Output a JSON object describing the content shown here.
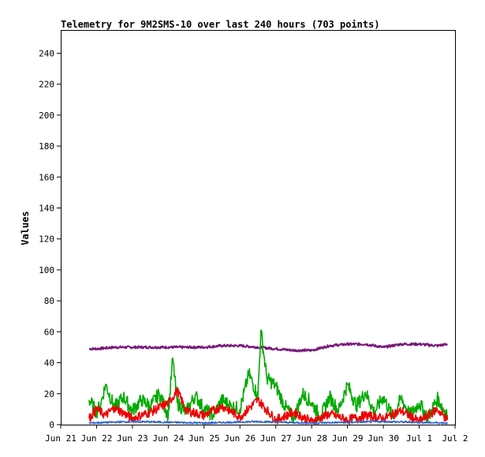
{
  "chart_data": {
    "type": "line",
    "title": "Telemetry for 9M2SMS-10 over last 240 hours (703 points)",
    "ylabel": "Values",
    "xlabel": "",
    "ylim": [
      0,
      255
    ],
    "yticks": [
      0,
      20,
      40,
      60,
      80,
      100,
      120,
      140,
      160,
      180,
      200,
      220,
      240
    ],
    "xlim": [
      "2024-06-21",
      "2024-07-02"
    ],
    "xticks": [
      {
        "date": "2024-06-21",
        "label": "Jun 21"
      },
      {
        "date": "2024-06-22",
        "label": "Jun 22"
      },
      {
        "date": "2024-06-23",
        "label": "Jun 23"
      },
      {
        "date": "2024-06-24",
        "label": "Jun 24"
      },
      {
        "date": "2024-06-25",
        "label": "Jun 25"
      },
      {
        "date": "2024-06-26",
        "label": "Jun 26"
      },
      {
        "date": "2024-06-27",
        "label": "Jun 27"
      },
      {
        "date": "2024-06-28",
        "label": "Jun 28"
      },
      {
        "date": "2024-06-29",
        "label": "Jun 29"
      },
      {
        "date": "2024-06-30",
        "label": "Jun 30"
      },
      {
        "date": "2024-07-01",
        "label": "Jul 1"
      },
      {
        "date": "2024-07-02",
        "label": "Jul 2"
      }
    ],
    "grid": false,
    "legend": "none",
    "series": [
      {
        "color": "#7a1a7a",
        "x": [
          "2024-06-21 19:00",
          "2024-06-22 00:00",
          "2024-06-22 12:00",
          "2024-06-23 00:00",
          "2024-06-23 12:00",
          "2024-06-24 00:00",
          "2024-06-24 12:00",
          "2024-06-25 00:00",
          "2024-06-25 12:00",
          "2024-06-26 00:00",
          "2024-06-26 12:00",
          "2024-06-27 00:00",
          "2024-06-27 12:00",
          "2024-06-28 00:00",
          "2024-06-28 12:00",
          "2024-06-29 00:00",
          "2024-06-29 12:00",
          "2024-06-30 00:00",
          "2024-06-30 12:00",
          "2024-07-01 00:00",
          "2024-07-01 12:00",
          "2024-07-01 19:00"
        ],
        "values": [
          49,
          49,
          50,
          50,
          50,
          50,
          50,
          50,
          51,
          51,
          50,
          49,
          48,
          48,
          51,
          52,
          52,
          50,
          52,
          52,
          51,
          52
        ]
      },
      {
        "color": "#00aa00",
        "x": [
          "2024-06-21 19:00",
          "2024-06-22 00:00",
          "2024-06-22 03:00",
          "2024-06-22 06:00",
          "2024-06-22 12:00",
          "2024-06-22 18:00",
          "2024-06-23 00:00",
          "2024-06-23 06:00",
          "2024-06-23 12:00",
          "2024-06-23 18:00",
          "2024-06-24 00:00",
          "2024-06-24 03:00",
          "2024-06-24 06:00",
          "2024-06-24 12:00",
          "2024-06-24 18:00",
          "2024-06-25 00:00",
          "2024-06-25 06:00",
          "2024-06-25 12:00",
          "2024-06-25 18:00",
          "2024-06-26 00:00",
          "2024-06-26 06:00",
          "2024-06-26 12:00",
          "2024-06-26 14:00",
          "2024-06-26 18:00",
          "2024-06-27 00:00",
          "2024-06-27 06:00",
          "2024-06-27 12:00",
          "2024-06-27 18:00",
          "2024-06-28 00:00",
          "2024-06-28 06:00",
          "2024-06-28 12:00",
          "2024-06-28 18:00",
          "2024-06-29 00:00",
          "2024-06-29 06:00",
          "2024-06-29 12:00",
          "2024-06-29 18:00",
          "2024-06-30 00:00",
          "2024-06-30 06:00",
          "2024-06-30 12:00",
          "2024-06-30 18:00",
          "2024-07-01 00:00",
          "2024-07-01 06:00",
          "2024-07-01 12:00",
          "2024-07-01 19:00"
        ],
        "values": [
          16,
          8,
          14,
          26,
          11,
          18,
          9,
          16,
          12,
          20,
          6,
          43,
          14,
          8,
          19,
          10,
          6,
          16,
          12,
          10,
          33,
          18,
          61,
          30,
          25,
          12,
          4,
          20,
          14,
          5,
          18,
          9,
          26,
          12,
          21,
          8,
          18,
          5,
          17,
          6,
          14,
          4,
          17,
          6
        ]
      },
      {
        "color": "#ee0000",
        "x": [
          "2024-06-21 19:00",
          "2024-06-22 00:00",
          "2024-06-22 06:00",
          "2024-06-22 12:00",
          "2024-06-23 00:00",
          "2024-06-23 12:00",
          "2024-06-24 00:00",
          "2024-06-24 06:00",
          "2024-06-24 12:00",
          "2024-06-25 00:00",
          "2024-06-25 12:00",
          "2024-06-26 00:00",
          "2024-06-26 12:00",
          "2024-06-27 00:00",
          "2024-06-27 12:00",
          "2024-06-28 00:00",
          "2024-06-28 12:00",
          "2024-06-29 00:00",
          "2024-06-29 12:00",
          "2024-06-30 00:00",
          "2024-06-30 12:00",
          "2024-07-01 00:00",
          "2024-07-01 12:00",
          "2024-07-01 19:00"
        ],
        "values": [
          4,
          10,
          6,
          11,
          4,
          8,
          14,
          22,
          9,
          6,
          12,
          5,
          16,
          3,
          8,
          2,
          7,
          3,
          6,
          4,
          9,
          2,
          10,
          3
        ]
      },
      {
        "color": "#3366cc",
        "x": [
          "2024-06-21 19:00",
          "2024-06-23 00:00",
          "2024-06-25 00:00",
          "2024-06-26 12:00",
          "2024-06-28 00:00",
          "2024-06-30 00:00",
          "2024-07-01 19:00"
        ],
        "values": [
          1,
          2,
          1,
          2,
          1,
          2,
          1
        ]
      }
    ]
  }
}
